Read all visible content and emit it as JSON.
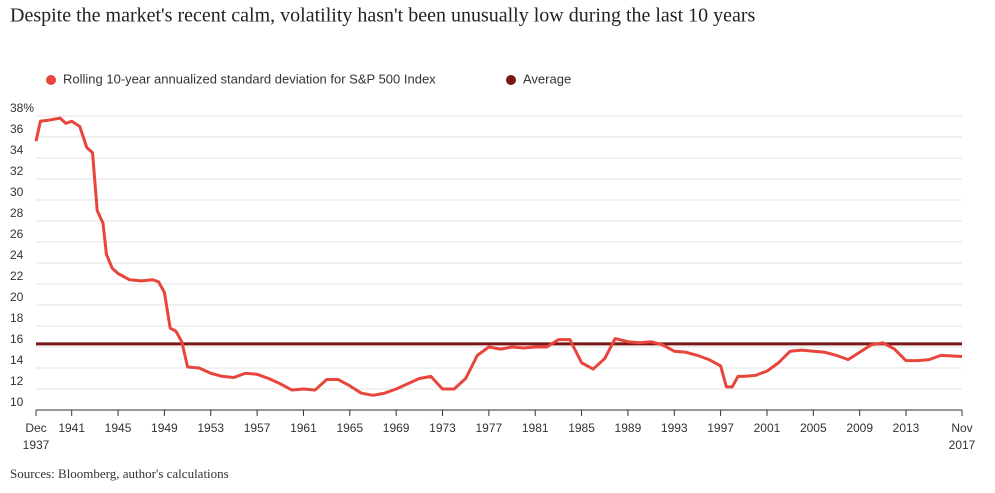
{
  "chart_data": {
    "type": "line",
    "title": "Despite the market's recent calm, volatility hasn't been unusually low during the last 10 years",
    "source": "Sources: Bloomberg, author's calculations",
    "x": [
      1937.92,
      1938.3,
      1939,
      1940,
      1940.5,
      1941,
      1941.7,
      1942.3,
      1942.8,
      1943.2,
      1943.7,
      1944,
      1944.5,
      1945,
      1946,
      1947,
      1948,
      1948.5,
      1949,
      1949.5,
      1950,
      1950.5,
      1951,
      1952,
      1953,
      1954,
      1955,
      1956,
      1957,
      1958,
      1959,
      1960,
      1961,
      1962,
      1963,
      1964,
      1965,
      1966,
      1967,
      1968,
      1969,
      1970,
      1971,
      1972,
      1973,
      1974,
      1975,
      1976,
      1977,
      1978,
      1979,
      1980,
      1981,
      1982,
      1983,
      1984,
      1985,
      1986,
      1987,
      1987.9,
      1989,
      1990,
      1991,
      1992,
      1993,
      1994,
      1995,
      1996,
      1997,
      1997.5,
      1998,
      1998.5,
      1999,
      2000,
      2001,
      2002,
      2003,
      2004,
      2005,
      2006,
      2007,
      2008,
      2009,
      2010,
      2011,
      2012,
      2013,
      2014,
      2015,
      2016,
      2017.83
    ],
    "series": [
      {
        "name": "Rolling 10-year annualized standard deviation for S&P 500 Index",
        "color": "#e8453c",
        "values": [
          35.6,
          37.5,
          37.6,
          37.8,
          37.3,
          37.5,
          37.0,
          35.0,
          34.5,
          29,
          27.8,
          24.8,
          23.5,
          23.0,
          22.4,
          22.3,
          22.4,
          22.2,
          21.2,
          17.8,
          17.5,
          16.5,
          14.1,
          14.0,
          13.5,
          13.2,
          13.1,
          13.5,
          13.4,
          13.0,
          12.5,
          11.9,
          12.0,
          11.9,
          12.9,
          12.9,
          12.3,
          11.6,
          11.4,
          11.6,
          12.0,
          12.5,
          13.0,
          13.2,
          12.0,
          12.0,
          13.0,
          15.2,
          16.0,
          15.8,
          16.0,
          15.9,
          16.0,
          16.0,
          16.7,
          16.7,
          14.5,
          13.9,
          14.9,
          16.8,
          16.5,
          16.4,
          16.5,
          16.2,
          15.6,
          15.5,
          15.2,
          14.8,
          14.2,
          12.2,
          12.2,
          13.2,
          13.2,
          13.3,
          13.7,
          14.5,
          15.6,
          15.7,
          15.6,
          15.5,
          15.2,
          14.8,
          15.5,
          16.2,
          16.4,
          15.8,
          14.7,
          14.7,
          14.8,
          15.2,
          15.1
        ]
      }
    ],
    "average": {
      "name": "Average",
      "value": 16.3,
      "color": "#7a1616"
    },
    "xlim": [
      1937.92,
      2017.83
    ],
    "xticks": [
      {
        "value": 1937.92,
        "label": "Dec\n1937"
      },
      1941,
      1945,
      1949,
      1953,
      1957,
      1961,
      1965,
      1969,
      1973,
      1977,
      1981,
      1985,
      1989,
      1993,
      1997,
      2001,
      2005,
      2009,
      2013,
      {
        "value": 2017.83,
        "label": "Nov\n2017"
      }
    ],
    "ylim": [
      10,
      38
    ],
    "yticks": [
      10,
      12,
      14,
      16,
      18,
      20,
      22,
      24,
      26,
      28,
      30,
      32,
      34,
      36,
      {
        "value": 38,
        "label": "38%"
      }
    ],
    "grid": true
  }
}
